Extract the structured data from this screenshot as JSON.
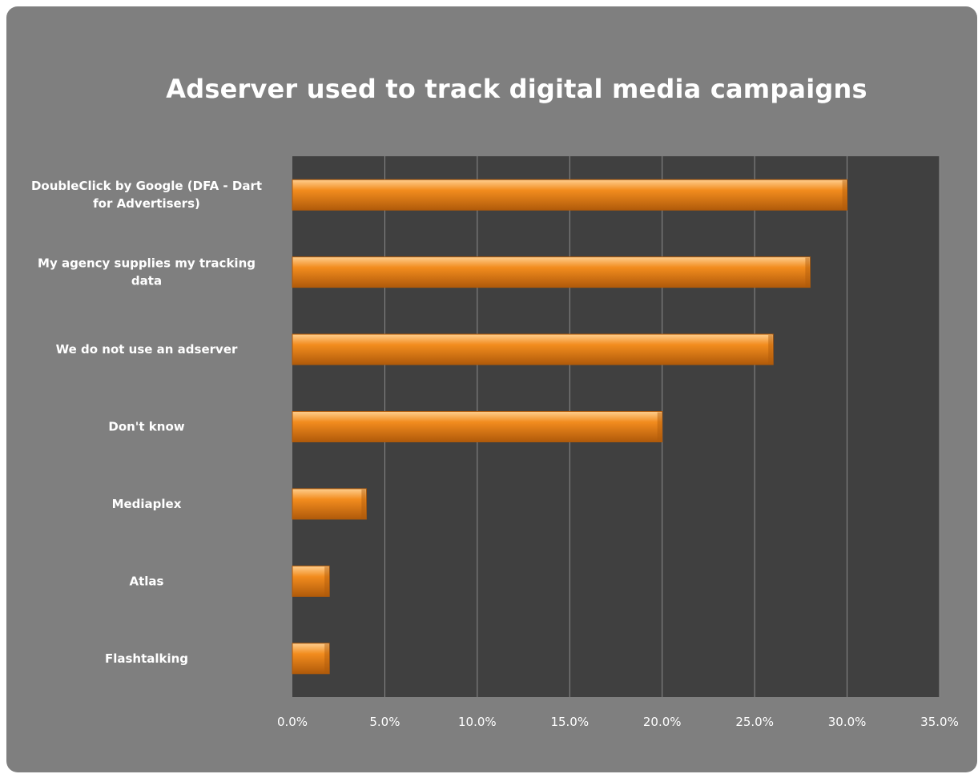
{
  "chart_data": {
    "type": "bar",
    "orientation": "horizontal",
    "title": "Adserver used to track digital media campaigns",
    "categories": [
      [
        "DoubleClick by Google (DFA - Dart",
        "for Advertisers)"
      ],
      [
        "My agency supplies my tracking",
        "data"
      ],
      [
        "We do not use an adserver"
      ],
      [
        "Don't know"
      ],
      [
        "Mediaplex"
      ],
      [
        "Atlas"
      ],
      [
        "Flashtalking"
      ]
    ],
    "values": [
      30.0,
      28.0,
      26.0,
      20.0,
      4.0,
      2.0,
      2.0
    ],
    "xlim": [
      0,
      35
    ],
    "ticks": [
      "0.0%",
      "5.0%",
      "10.0%",
      "15.0%",
      "20.0%",
      "25.0%",
      "30.0%",
      "35.0%"
    ],
    "tick_values": [
      0,
      5,
      10,
      15,
      20,
      25,
      30,
      35
    ],
    "grid": true,
    "colors": {
      "frame": "#7f7f7f",
      "plot_area": "#404040",
      "gridline": "#8c8c8c",
      "bar": "#f28c1e",
      "bar_light": "#ffcf8f",
      "bar_dark": "#b05a0a",
      "text": "#ffffff"
    }
  }
}
